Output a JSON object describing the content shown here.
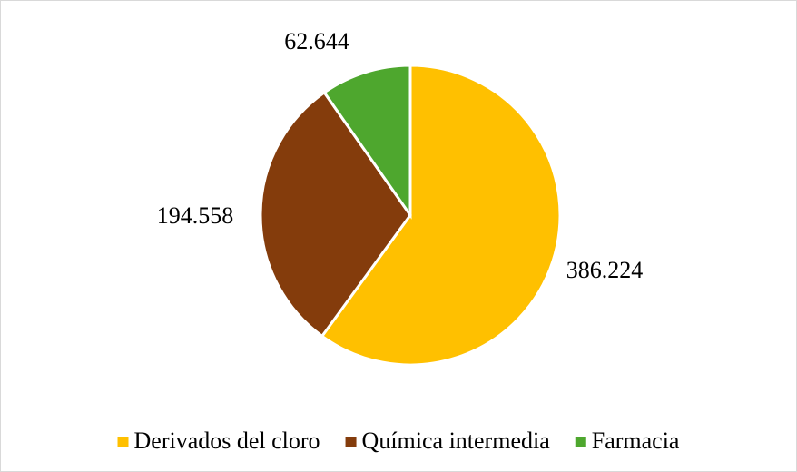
{
  "chart_data": {
    "type": "pie",
    "categories": [
      "Derivados del cloro",
      "Química intermedia",
      "Farmacia"
    ],
    "values": [
      386.224,
      194.558,
      62.644
    ],
    "colors": [
      "#ffc000",
      "#843c0c",
      "#4ea72e"
    ],
    "legend": "bottom"
  }
}
